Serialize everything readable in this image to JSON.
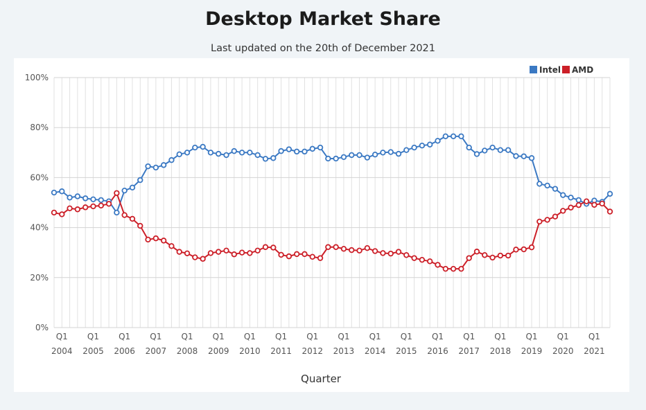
{
  "header": {
    "title": "Desktop Market Share",
    "subtitle": "Last updated on the 20th of December 2021"
  },
  "chart_data": {
    "type": "line",
    "title": "Desktop Market Share",
    "subtitle": "Last updated on the 20th of December 2021",
    "xlabel": "Quarter",
    "ylabel": "",
    "ylim": [
      0,
      100
    ],
    "yticks": [
      "0%",
      "20%",
      "40%",
      "60%",
      "80%",
      "100%"
    ],
    "legend_position": "top-right",
    "grid": true,
    "start": "2003 Q4",
    "end": "2021 Q4",
    "x_tick_labels": [
      {
        "quarter": "Q1",
        "year": "2004"
      },
      {
        "quarter": "Q1",
        "year": "2005"
      },
      {
        "quarter": "Q1",
        "year": "2006"
      },
      {
        "quarter": "Q1",
        "year": "2007"
      },
      {
        "quarter": "Q1",
        "year": "2008"
      },
      {
        "quarter": "Q1",
        "year": "2009"
      },
      {
        "quarter": "Q1",
        "year": "2010"
      },
      {
        "quarter": "Q1",
        "year": "2011"
      },
      {
        "quarter": "Q1",
        "year": "2012"
      },
      {
        "quarter": "Q1",
        "year": "2013"
      },
      {
        "quarter": "Q1",
        "year": "2014"
      },
      {
        "quarter": "Q1",
        "year": "2015"
      },
      {
        "quarter": "Q1",
        "year": "2016"
      },
      {
        "quarter": "Q1",
        "year": "2017"
      },
      {
        "quarter": "Q1",
        "year": "2018"
      },
      {
        "quarter": "Q1",
        "year": "2019"
      },
      {
        "quarter": "Q1",
        "year": "2020"
      },
      {
        "quarter": "Q1",
        "year": "2021"
      }
    ],
    "series": [
      {
        "name": "Intel",
        "color": "#3b79c3",
        "values": [
          54,
          54.5,
          52,
          52.5,
          51.7,
          51.3,
          51,
          50.5,
          46,
          54.8,
          56,
          59,
          64.5,
          64,
          65,
          67,
          69.3,
          70,
          72,
          72.3,
          70,
          69.5,
          69,
          70.6,
          70,
          70,
          69,
          67.5,
          67.8,
          70.6,
          71.3,
          70.4,
          70.4,
          71.5,
          72,
          67.6,
          67.6,
          68.2,
          69,
          69,
          68,
          69.2,
          70,
          70.2,
          69.5,
          71,
          72,
          72.8,
          73.2,
          74.7,
          76.5,
          76.5,
          76.5,
          72,
          69.4,
          70.8,
          72,
          71,
          71,
          68.6,
          68.5,
          67.8,
          57.5,
          56.8,
          55.5,
          53,
          52,
          51,
          49.5,
          50.8,
          50.3,
          53.5
        ]
      },
      {
        "name": "AMD",
        "color": "#cc1f28",
        "values": [
          46,
          45.3,
          47.7,
          47.3,
          48.1,
          48.5,
          48.8,
          49.5,
          53.8,
          45,
          43.5,
          40.7,
          35.2,
          35.7,
          34.8,
          32.6,
          30.3,
          29.7,
          28.1,
          27.5,
          29.8,
          30.3,
          30.8,
          29.3,
          30,
          29.8,
          30.8,
          32.2,
          32,
          29.1,
          28.5,
          29.4,
          29.4,
          28.3,
          27.8,
          32.2,
          32.2,
          31.5,
          31,
          30.8,
          31.8,
          30.6,
          29.8,
          29.6,
          30.3,
          29,
          27.8,
          27.1,
          26.5,
          25.1,
          23.5,
          23.5,
          23.5,
          27.8,
          30.4,
          29,
          28,
          28.8,
          28.8,
          31.2,
          31.3,
          32.1,
          42.4,
          43.1,
          44.4,
          46.7,
          48,
          49,
          50.5,
          49.1,
          49.6,
          46.4
        ]
      }
    ]
  }
}
